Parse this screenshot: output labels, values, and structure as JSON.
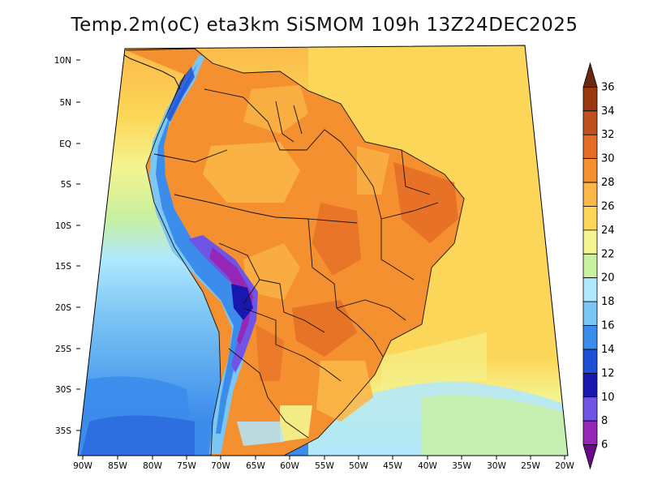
{
  "title": "Temp.2m(oC) eta3km SiSMOM 109h 13Z24DEC2025",
  "lat_labels": [
    "10N",
    "5N",
    "EQ",
    "5S",
    "10S",
    "15S",
    "20S",
    "25S",
    "30S",
    "35S"
  ],
  "lon_labels": [
    "90W",
    "85W",
    "80W",
    "75W",
    "70W",
    "65W",
    "60W",
    "55W",
    "50W",
    "45W",
    "40W",
    "35W",
    "30W",
    "25W",
    "20W"
  ],
  "colorbar": {
    "levels": [
      "6",
      "8",
      "10",
      "12",
      "14",
      "16",
      "18",
      "20",
      "22",
      "24",
      "26",
      "28",
      "30",
      "32",
      "34",
      "36"
    ],
    "colors": [
      "#6a0a8a",
      "#9626b6",
      "#6f54e6",
      "#1818b0",
      "#1e4fd6",
      "#3c8cec",
      "#7cc6f4",
      "#b0e8ff",
      "#c8f0a0",
      "#f4f490",
      "#fcd658",
      "#fbb848",
      "#f49030",
      "#e46c26",
      "#c0501e",
      "#9a3810",
      "#6a2810"
    ]
  },
  "colors": {
    "ocean_south": "#3c8cec",
    "ocean_north": "#fcd658",
    "land_hot": "#f49030"
  }
}
